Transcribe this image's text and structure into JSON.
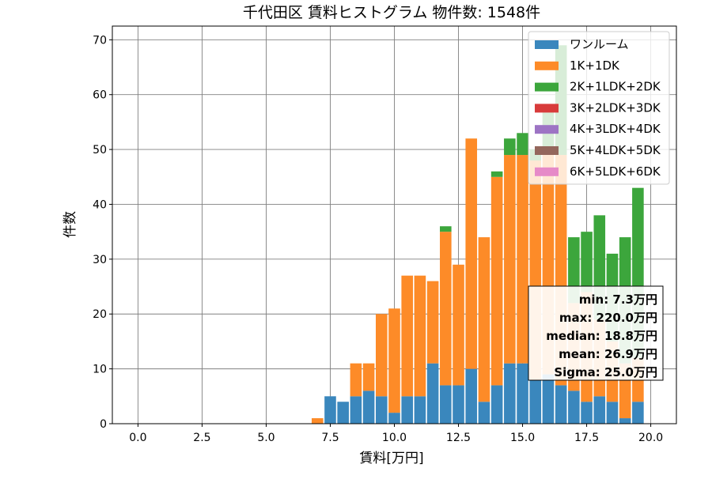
{
  "chart_data": {
    "type": "bar",
    "stacked": true,
    "title": "千代田区 賃料ヒストグラム 物件数: 1548件",
    "xlabel": "賃料[万円]",
    "ylabel": "件数",
    "xlim": [
      -1.0,
      21.0
    ],
    "ylim": [
      0,
      72.5
    ],
    "xticks": [
      0.0,
      2.5,
      5.0,
      7.5,
      10.0,
      12.5,
      15.0,
      17.5,
      20.0
    ],
    "xtick_labels": [
      "0.0",
      "2.5",
      "5.0",
      "7.5",
      "10.0",
      "12.5",
      "15.0",
      "17.5",
      "20.0"
    ],
    "yticks": [
      0,
      10,
      20,
      30,
      40,
      50,
      60,
      70
    ],
    "ytick_labels": [
      "0",
      "10",
      "20",
      "30",
      "40",
      "50",
      "60",
      "70"
    ],
    "grid": true,
    "legend_position": "top-right",
    "bin_width": 0.5,
    "bar_width": 0.45,
    "x": [
      7.0,
      7.5,
      8.0,
      8.5,
      9.0,
      9.5,
      10.0,
      10.5,
      11.0,
      11.5,
      12.0,
      12.5,
      13.0,
      13.5,
      14.0,
      14.5,
      15.0,
      15.5,
      16.0,
      16.5,
      17.0,
      17.5,
      18.0,
      18.5,
      19.0,
      19.5
    ],
    "series": [
      {
        "name": "ワンルーム",
        "color": "#3a87bd",
        "values": [
          0,
          5,
          4,
          5,
          6,
          5,
          2,
          5,
          5,
          11,
          7,
          7,
          10,
          4,
          7,
          11,
          11,
          8,
          9,
          7,
          6,
          4,
          5,
          4,
          1,
          4
        ]
      },
      {
        "name": "1K+1DK",
        "color": "#fd8b28",
        "values": [
          1,
          0,
          0,
          6,
          5,
          15,
          19,
          22,
          22,
          15,
          28,
          22,
          42,
          30,
          38,
          38,
          38,
          40,
          41,
          42,
          16,
          20,
          14,
          11,
          10,
          8
        ]
      },
      {
        "name": "2K+1LDK+2DK",
        "color": "#3ca63c",
        "values": [
          0,
          0,
          0,
          0,
          0,
          0,
          0,
          0,
          0,
          0,
          1,
          0,
          0,
          0,
          1,
          3,
          4,
          2,
          8,
          20,
          12,
          11,
          19,
          16,
          23,
          31
        ]
      },
      {
        "name": "3K+2LDK+3DK",
        "color": "#d83b3b",
        "values": [
          0,
          0,
          0,
          0,
          0,
          0,
          0,
          0,
          0,
          0,
          0,
          0,
          0,
          0,
          0,
          0,
          0,
          0,
          0,
          0,
          0,
          0,
          0,
          0,
          0,
          0
        ]
      },
      {
        "name": "4K+3LDK+4DK",
        "color": "#9d74c4",
        "values": [
          0,
          0,
          0,
          0,
          0,
          0,
          0,
          0,
          0,
          0,
          0,
          0,
          0,
          0,
          0,
          0,
          0,
          0,
          0,
          0,
          0,
          0,
          0,
          0,
          0,
          0
        ]
      },
      {
        "name": "5K+4LDK+5DK",
        "color": "#94675c",
        "values": [
          0,
          0,
          0,
          0,
          0,
          0,
          0,
          0,
          0,
          0,
          0,
          0,
          0,
          0,
          0,
          0,
          0,
          0,
          0,
          0,
          0,
          0,
          0,
          0,
          0,
          0
        ]
      },
      {
        "name": "6K+5LDK+6DK",
        "color": "#e68ac8",
        "values": [
          0,
          0,
          0,
          0,
          0,
          0,
          0,
          0,
          0,
          0,
          0,
          0,
          0,
          0,
          0,
          0,
          0,
          0,
          0,
          0,
          0,
          0,
          0,
          0,
          0,
          0
        ]
      }
    ],
    "stats": [
      "min: 7.3万円",
      "max: 220.0万円",
      "median: 18.8万円",
      "mean: 26.9万円",
      "Sigma: 25.0万円"
    ]
  }
}
